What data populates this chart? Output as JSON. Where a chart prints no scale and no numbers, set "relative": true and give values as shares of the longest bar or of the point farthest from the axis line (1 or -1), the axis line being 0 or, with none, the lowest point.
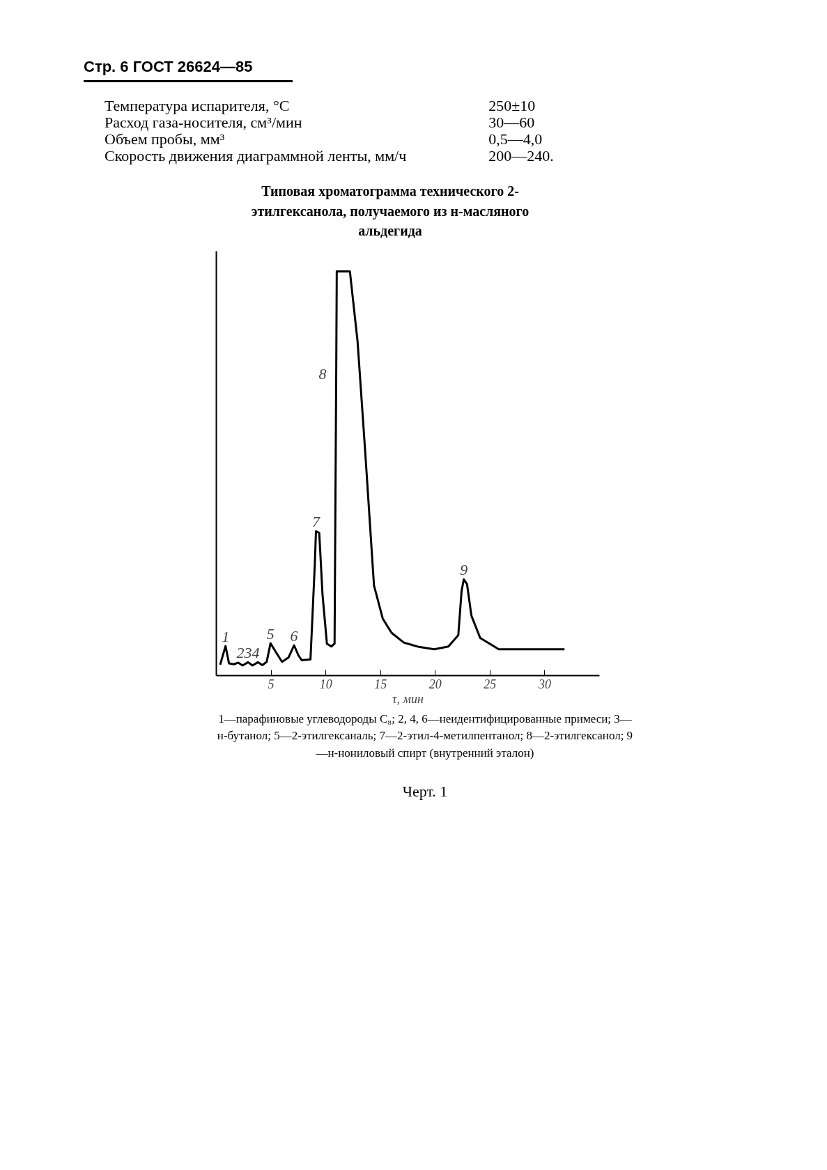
{
  "chart_data": {
    "type": "line",
    "title": "Типовая хроматограмма технического 2-этилгексанола, получаемого из н-масляного альдегида",
    "xlabel": "τ, мин",
    "relative": true,
    "grid": false,
    "marker": "none",
    "line_style": "solid",
    "xlim": [
      0,
      35
    ],
    "xticks": [
      5,
      10,
      15,
      20,
      25,
      30
    ],
    "series": [
      {
        "color": "#000000",
        "x": [
          0.35,
          0.84,
          1.16,
          1.6,
          2.0,
          2.4,
          2.9,
          3.3,
          3.8,
          4.2,
          4.6,
          4.95,
          5.4,
          6.0,
          6.6,
          7.1,
          7.5,
          7.8,
          8.6,
          9.0,
          9.1,
          9.4,
          9.7,
          10.1,
          10.5,
          10.8,
          10.95,
          11.0,
          12.2,
          12.9,
          13.6,
          14.4,
          15.2,
          16.0,
          17.1,
          18.5,
          19.9,
          21.2,
          22.1,
          22.4,
          22.6,
          22.9,
          23.3,
          24.1,
          25.8,
          31.8
        ],
        "values": [
          0.027,
          0.073,
          0.03,
          0.028,
          0.032,
          0.025,
          0.033,
          0.025,
          0.033,
          0.026,
          0.034,
          0.08,
          0.06,
          0.034,
          0.045,
          0.075,
          0.05,
          0.038,
          0.04,
          0.278,
          0.357,
          0.353,
          0.2,
          0.079,
          0.072,
          0.079,
          0.745,
          1.0,
          1.0,
          0.827,
          0.553,
          0.223,
          0.141,
          0.106,
          0.082,
          0.071,
          0.065,
          0.072,
          0.1,
          0.209,
          0.238,
          0.226,
          0.148,
          0.093,
          0.065,
          0.065
        ]
      }
    ],
    "annotations": [
      "Стр. 6   ГОСТ 26624—85",
      "Температура испарителя, °C",
      "250±10",
      "Расход газа-носителя, см³/мин",
      "30—60",
      "Объем пробы, мм³",
      "0,5—4,0",
      "Скорость движения диаграммной ленты, мм/ч",
      "200—240.",
      {
        "text": "1",
        "x": 0.84,
        "y": 0.073
      },
      {
        "text": "234",
        "x": 2.9,
        "y": 0.033
      },
      {
        "text": "5",
        "x": 4.95,
        "y": 0.08
      },
      {
        "text": "6",
        "x": 7.1,
        "y": 0.075
      },
      {
        "text": "7",
        "x": 9.1,
        "y": 0.357
      },
      {
        "text": "8",
        "x": 10.95,
        "y": 0.745
      },
      {
        "text": "9",
        "x": 22.6,
        "y": 0.238
      },
      "1—парафиновые углеводороды C₈; 2, 4, 6—неидентифицированные примеси; 3—н-бутанол; 5—2-этилгексаналь; 7—2-этил-4-метилпентанол; 8—2-этилгексанол; 9—н-нониловый спирт (внутренний эталон)",
      "Черт. 1"
    ]
  }
}
